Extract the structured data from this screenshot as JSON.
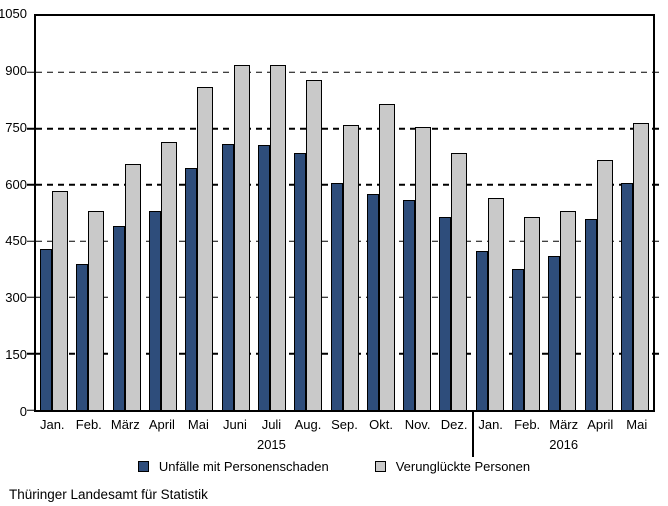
{
  "chart_data": {
    "type": "bar",
    "title": "",
    "xlabel": "",
    "ylabel": "",
    "ylim": [
      0,
      1050
    ],
    "yticks": [
      0,
      150,
      300,
      450,
      600,
      750,
      900,
      1050
    ],
    "grid": "horizontal-dashed",
    "legend_position": "bottom",
    "categories": [
      "Jan.",
      "Feb.",
      "März",
      "April",
      "Mai",
      "Juni",
      "Juli",
      "Aug.",
      "Sep.",
      "Okt.",
      "Nov.",
      "Dez.",
      "Jan.",
      "Feb.",
      "März",
      "April",
      "Mai"
    ],
    "year_groups": [
      {
        "label": "2015",
        "span": 12
      },
      {
        "label": "2016",
        "span": 5
      }
    ],
    "series": [
      {
        "name": "Unfälle mit Personenschaden",
        "color": "#2e4d7b",
        "values": [
          430,
          390,
          490,
          530,
          645,
          710,
          705,
          685,
          605,
          575,
          560,
          515,
          425,
          375,
          410,
          510,
          605
        ]
      },
      {
        "name": "Verunglückte Personen",
        "color": "#c9c9c9",
        "values": [
          585,
          530,
          655,
          715,
          860,
          920,
          920,
          880,
          760,
          815,
          755,
          685,
          565,
          515,
          530,
          665,
          765
        ]
      }
    ]
  },
  "footer": {
    "source": "Thüringer Landesamt für Statistik"
  }
}
